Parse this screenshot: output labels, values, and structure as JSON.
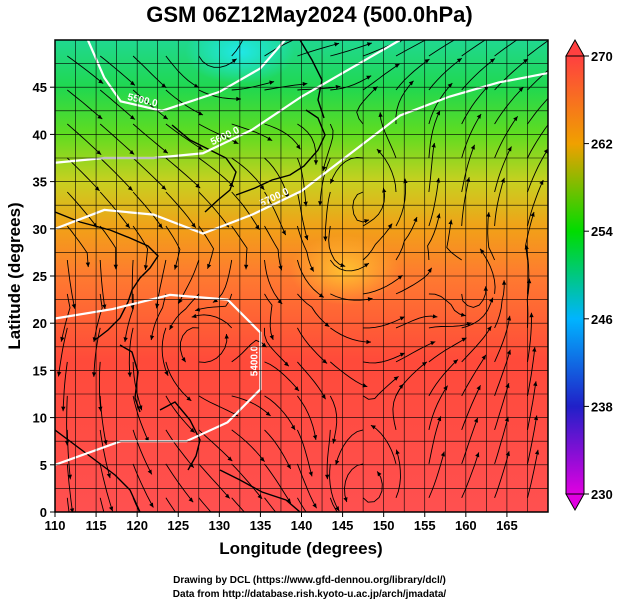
{
  "title": "GSM 06Z12May2024 (500.0hPa)",
  "credits": [
    "Drawing by DCL (https://www.gfd-dennou.org/library/dcl/)",
    "Data from http://database.rish.kyoto-u.ac.jp/arch/jmadata/"
  ],
  "chart_data": {
    "type": "heatmap",
    "title": "GSM 06Z12May2024 (500.0hPa)",
    "xlabel": "Longitude (degrees)",
    "ylabel": "Latitude  (degrees)",
    "xlim": [
      110,
      170
    ],
    "ylim": [
      0,
      50
    ],
    "x_ticks": [
      110,
      115,
      120,
      125,
      130,
      135,
      140,
      145,
      150,
      155,
      160,
      165
    ],
    "y_ticks": [
      0,
      5,
      10,
      15,
      20,
      25,
      30,
      35,
      40,
      45
    ],
    "grid": true,
    "colorbar": {
      "range": [
        230,
        270
      ],
      "ticks": [
        230,
        238,
        246,
        254,
        262,
        270
      ],
      "stops": [
        "#e000e0",
        "#2020c8",
        "#00b4ff",
        "#00dc00",
        "#f0a000",
        "#ff4040"
      ]
    },
    "contours": [
      {
        "label": "5400.0",
        "points": [
          [
            110,
            5
          ],
          [
            118,
            7.5
          ],
          [
            126,
            7.5
          ],
          [
            131,
            9.5
          ],
          [
            135,
            13
          ],
          [
            135,
            19
          ],
          [
            131,
            22.5
          ],
          [
            124,
            23
          ],
          [
            117,
            21.5
          ],
          [
            110,
            20.5
          ]
        ]
      },
      {
        "label": "5700.0",
        "points": [
          [
            110,
            30
          ],
          [
            116,
            32
          ],
          [
            122,
            31.5
          ],
          [
            128,
            29.5
          ],
          [
            134,
            31.5
          ],
          [
            140,
            34
          ],
          [
            146,
            38
          ],
          [
            152,
            42
          ],
          [
            158,
            44
          ],
          [
            164,
            45.5
          ],
          [
            170,
            46.5
          ]
        ]
      },
      {
        "label": "5600.0",
        "points": [
          [
            110,
            37
          ],
          [
            116,
            37.5
          ],
          [
            122,
            37.5
          ],
          [
            128,
            38
          ],
          [
            134,
            40.5
          ],
          [
            140,
            44
          ],
          [
            146,
            47
          ],
          [
            152,
            50
          ]
        ]
      },
      {
        "label": "5500.0",
        "points": [
          [
            114,
            50
          ],
          [
            116,
            46
          ],
          [
            118,
            43.5
          ],
          [
            123,
            42.5
          ],
          [
            130,
            44.5
          ],
          [
            135,
            47
          ],
          [
            138,
            50
          ]
        ]
      }
    ],
    "cyclone_centers": [
      [
        127,
        18
      ],
      [
        148,
        33
      ],
      [
        145,
        28
      ],
      [
        161,
        23
      ],
      [
        148,
        2
      ],
      [
        129,
        49
      ]
    ]
  }
}
